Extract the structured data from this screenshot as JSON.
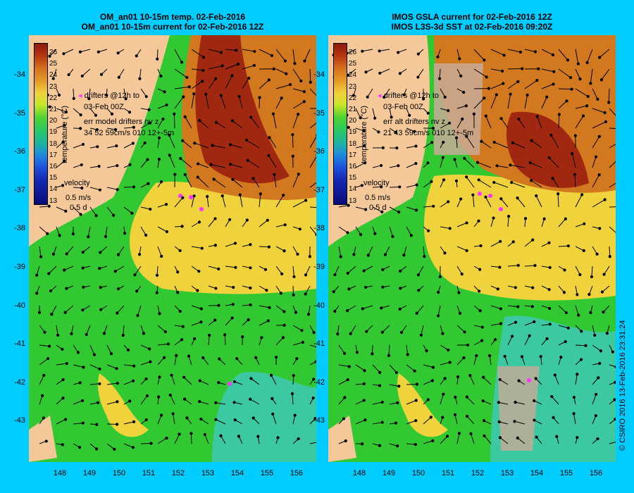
{
  "left_panel": {
    "title_line1": "OM_an01 10-15m temp. 02-Feb-2016",
    "title_line2": "OM_an01 10-15m current for 02-Feb-2016 12Z",
    "legend_drifters": "drifters @12h to",
    "legend_drifters_date": "03-Feb 00Z",
    "err_label": "err model drifters nv z",
    "err_values": "34 52 59cm/s 010 12+-5m",
    "velocity_label": "velocity",
    "velocity_scale": "0.5 m/s",
    "velocity_time": "0.5 d"
  },
  "right_panel": {
    "title_line1": "IMOS GSLA current for 02-Feb-2016 12Z",
    "title_line2": "IMOS L3S-3d SST at 02-Feb-2016 09:20Z",
    "legend_drifters": "drifters @12h to",
    "legend_drifters_date": "03-Feb 00Z",
    "err_label": "err alt drifters nv z",
    "err_values": "21 43 59cm/s 010 12+-5m",
    "velocity_label": "velocity",
    "velocity_scale": "0.5 m/s",
    "velocity_time": "0.5 d"
  },
  "colorbar": {
    "title": "temperature (°C)",
    "labels": [
      "26",
      "25",
      "24",
      "23",
      "22",
      "21",
      "20",
      "19",
      "18",
      "17",
      "16",
      "15",
      "14",
      "13"
    ]
  },
  "axes": {
    "lat_ticks": [
      "-34",
      "-35",
      "-36",
      "-37",
      "-38",
      "-39",
      "-40",
      "-41",
      "-42",
      "-43"
    ],
    "lon_ticks": [
      "148",
      "149",
      "150",
      "151",
      "152",
      "153",
      "154",
      "155",
      "156"
    ]
  },
  "credit": "© CSIRO 2016   13-Feb-2016 23:31:24",
  "colors": {
    "background": "#00ccff",
    "land": "#f5c89a",
    "missing": "#c8aa96",
    "drifter": "#ff33ff"
  }
}
